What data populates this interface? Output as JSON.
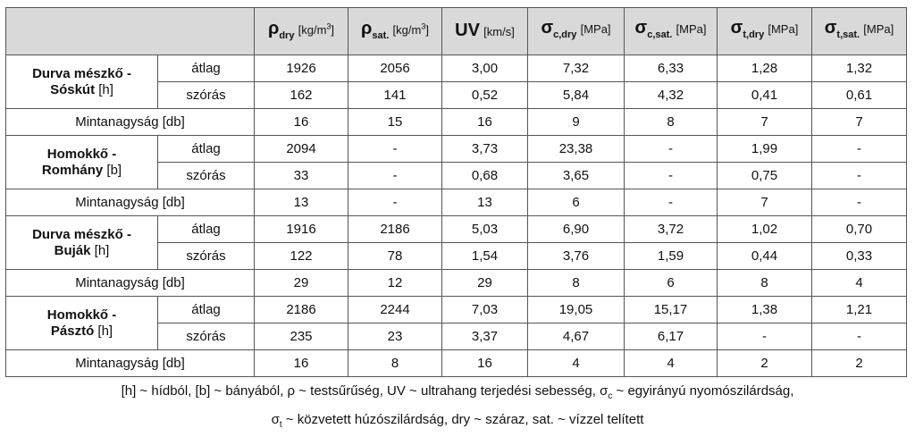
{
  "header": {
    "cols": [
      {
        "main": "ρ",
        "sub": "dry",
        "sup": "",
        "unit_pre": "[kg/m",
        "unit_sup": "3",
        "unit_post": "]"
      },
      {
        "main": "ρ",
        "sub": "sat.",
        "sup": "",
        "unit_pre": "[kg/m",
        "unit_sup": "3",
        "unit_post": "]"
      },
      {
        "main": "UV",
        "sub": "",
        "sup": "",
        "unit_pre": "[km/s]",
        "unit_sup": "",
        "unit_post": ""
      },
      {
        "main": "σ",
        "sub": "c,dry",
        "sup": "",
        "unit_pre": "[MPa]",
        "unit_sup": "",
        "unit_post": ""
      },
      {
        "main": "σ",
        "sub": "c,sat.",
        "sup": "",
        "unit_pre": "[MPa]",
        "unit_sup": "",
        "unit_post": ""
      },
      {
        "main": "σ",
        "sub": "t,dry",
        "sup": "",
        "unit_pre": "[MPa]",
        "unit_sup": "",
        "unit_post": ""
      },
      {
        "main": "σ",
        "sub": "t,sat.",
        "sup": "",
        "unit_pre": "[MPa]",
        "unit_sup": "",
        "unit_post": ""
      }
    ]
  },
  "groups": [
    {
      "site_line1": "Durva mészkő -",
      "site_line2": "Sóskút",
      "site_tag": "[h]",
      "mean_label": "átlag",
      "mean": [
        "1926",
        "2056",
        "3,00",
        "7,32",
        "6,33",
        "1,28",
        "1,32"
      ],
      "sd_label": "szórás",
      "sd": [
        "162",
        "141",
        "0,52",
        "5,84",
        "4,32",
        "0,41",
        "0,61"
      ],
      "n_label": "Mintanagyság [db]",
      "n": [
        "16",
        "15",
        "16",
        "9",
        "8",
        "7",
        "7"
      ]
    },
    {
      "site_line1": "Homokkő -",
      "site_line2": "Romhány",
      "site_tag": "[b]",
      "mean_label": "átlag",
      "mean": [
        "2094",
        "-",
        "3,73",
        "23,38",
        "-",
        "1,99",
        "-"
      ],
      "sd_label": "szórás",
      "sd": [
        "33",
        "-",
        "0,68",
        "3,65",
        "-",
        "0,75",
        "-"
      ],
      "n_label": "Mintanagyság [db]",
      "n": [
        "13",
        "-",
        "13",
        "6",
        "-",
        "7",
        "-"
      ]
    },
    {
      "site_line1": "Durva mészkő -",
      "site_line2": "Buják",
      "site_tag": "[h]",
      "mean_label": "átlag",
      "mean": [
        "1916",
        "2186",
        "5,03",
        "6,90",
        "3,72",
        "1,02",
        "0,70"
      ],
      "sd_label": "szórás",
      "sd": [
        "122",
        "78",
        "1,54",
        "3,76",
        "1,59",
        "0,44",
        "0,33"
      ],
      "n_label": "Mintanagyság [db]",
      "n": [
        "29",
        "12",
        "29",
        "8",
        "6",
        "8",
        "4"
      ]
    },
    {
      "site_line1": "Homokkő -",
      "site_line2": "Pásztó",
      "site_tag": "[h]",
      "mean_label": "átlag",
      "mean": [
        "2186",
        "2244",
        "7,03",
        "19,05",
        "15,17",
        "1,38",
        "1,21"
      ],
      "sd_label": "szórás",
      "sd": [
        "235",
        "23",
        "3,37",
        "4,67",
        "6,17",
        "-",
        "-"
      ],
      "n_label": "Mintanagyság [db]",
      "n": [
        "16",
        "8",
        "16",
        "4",
        "4",
        "2",
        "2"
      ]
    }
  ],
  "caption": {
    "line1_a": "[h] ~ hídból, [b] ~ bányából, ρ ~ testsűrűség, UV ~ ultrahang terjedési sebesség, σ",
    "line1_sub": "c",
    "line1_b": " ~ egyirányú nyomószilárdság,",
    "line2_a": "σ",
    "line2_sub": "t",
    "line2_b": " ~ közvetett húzószilárdság, dry ~ száraz, sat. ~ vízzel telített"
  }
}
